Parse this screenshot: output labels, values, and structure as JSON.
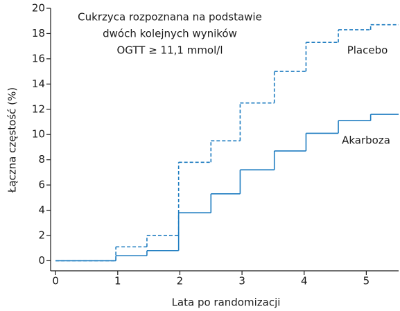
{
  "chart_data": {
    "type": "step",
    "annotation": [
      "Cukrzyca rozpoznana na podstawie",
      "dwóch kolejnych wyników",
      "OGTT ≥ 11,1 mmol/l"
    ],
    "x_label": "Lata po randomizacji",
    "y_label": "Łączna częstość (%)",
    "x": [
      0,
      0.97,
      1.47,
      1.98,
      2.5,
      2.97,
      3.52,
      4.03,
      4.55,
      5.07
    ],
    "series": [
      {
        "name": "Placebo",
        "color": "#1e7cc0",
        "dashed": true,
        "values": [
          0,
          1.1,
          2.0,
          7.8,
          9.5,
          12.5,
          15.0,
          17.3,
          18.3,
          18.7
        ]
      },
      {
        "name": "Akarboza",
        "color": "#1e7cc0",
        "dashed": false,
        "values": [
          0,
          0.4,
          0.8,
          3.8,
          5.3,
          7.2,
          8.7,
          10.1,
          11.1,
          11.6
        ]
      }
    ],
    "xlim": [
      -0.08,
      5.52
    ],
    "ylim": [
      -0.8,
      20
    ],
    "xticks": [
      0,
      1,
      2,
      3,
      4,
      5
    ],
    "yticks": [
      0,
      2,
      4,
      6,
      8,
      10,
      12,
      14,
      16,
      18,
      20
    ]
  }
}
